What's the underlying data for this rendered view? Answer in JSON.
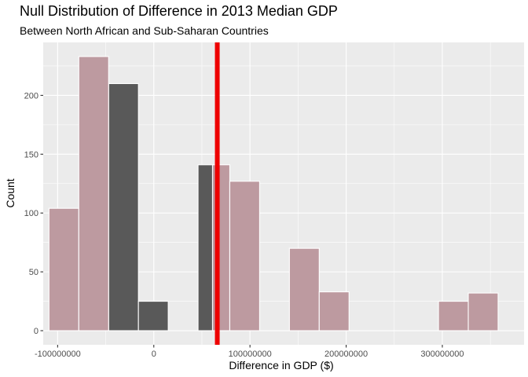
{
  "chart_data": {
    "type": "bar",
    "title": "Null Distribution of Difference in 2013 Median GDP",
    "subtitle": "Between North African and Sub-Saharan Countries",
    "xlabel": "Difference in GDP ($)",
    "ylabel": "Count",
    "xlim": [
      -115000000,
      385000000
    ],
    "ylim": [
      -12,
      245
    ],
    "x_ticks": [
      -100000000,
      0,
      100000000,
      200000000,
      300000000
    ],
    "x_tick_labels": [
      "-100000000",
      "0",
      "100000000",
      "200000000",
      "300000000"
    ],
    "y_ticks": [
      0,
      50,
      100,
      150,
      200
    ],
    "y_tick_labels": [
      "0",
      "50",
      "100",
      "150",
      "200"
    ],
    "grid": true,
    "bin_width": 31000000,
    "series": [
      {
        "fill": "#595959",
        "outline": "#ffffff",
        "bars": [
          {
            "x_start": -47000000,
            "x_end": -16000000,
            "count": 210
          },
          {
            "x_start": -16000000,
            "x_end": 15000000,
            "count": 25
          },
          {
            "x_start": 46000000,
            "x_end": 77000000,
            "count": 141
          }
        ]
      },
      {
        "fill": "#bd9aa0",
        "outline": "#ffffff",
        "bars": [
          {
            "x_start": -109000000,
            "x_end": -78000000,
            "count": 104
          },
          {
            "x_start": -78000000,
            "x_end": -47000000,
            "count": 233
          },
          {
            "x_start": 61000000,
            "x_end": 79000000,
            "count": 141
          },
          {
            "x_start": 79000000,
            "x_end": 110000000,
            "count": 127
          },
          {
            "x_start": 141000000,
            "x_end": 172000000,
            "count": 70
          },
          {
            "x_start": 172000000,
            "x_end": 203000000,
            "count": 33
          },
          {
            "x_start": 296000000,
            "x_end": 327000000,
            "count": 25
          },
          {
            "x_start": 327000000,
            "x_end": 358000000,
            "count": 32
          }
        ]
      }
    ],
    "vline": {
      "x": 66000000,
      "color": "#ee0000"
    },
    "colors": {
      "panel_bg": "#ebebeb",
      "grid": "#ffffff"
    }
  }
}
